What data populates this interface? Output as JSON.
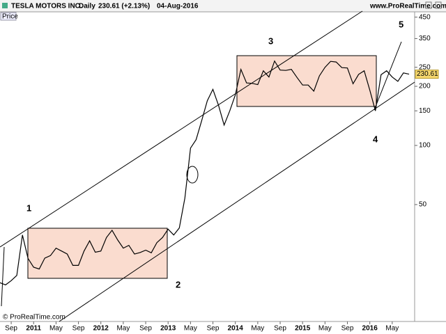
{
  "chart_data": {
    "type": "line",
    "title": "TESLA MOTORS INC.",
    "interval": "Daily",
    "change": "230.61 (+2.13%)",
    "date": "04-Aug-2016",
    "source": "www.ProRealTime.com",
    "copyright": "© ProRealTime.com",
    "annotations": [
      "1",
      "2",
      "3",
      "4",
      "5"
    ],
    "log_scale": true,
    "x": [
      "2010-07",
      "2010-08",
      "2010-09",
      "2010-10",
      "2010-11",
      "2010-12",
      "2011-01",
      "2011-02",
      "2011-03",
      "2011-04",
      "2011-05",
      "2011-06",
      "2011-07",
      "2011-08",
      "2011-09",
      "2011-10",
      "2011-11",
      "2011-12",
      "2012-01",
      "2012-02",
      "2012-03",
      "2012-04",
      "2012-05",
      "2012-06",
      "2012-07",
      "2012-08",
      "2012-09",
      "2012-10",
      "2012-11",
      "2012-12",
      "2013-01",
      "2013-02",
      "2013-03",
      "2013-04",
      "2013-05",
      "2013-06",
      "2013-07",
      "2013-08",
      "2013-09",
      "2013-10",
      "2013-11",
      "2013-12",
      "2014-01",
      "2014-02",
      "2014-03",
      "2014-04",
      "2014-05",
      "2014-06",
      "2014-07",
      "2014-08",
      "2014-09",
      "2014-10",
      "2014-11",
      "2014-12",
      "2015-01",
      "2015-02",
      "2015-03",
      "2015-04",
      "2015-05",
      "2015-06",
      "2015-07",
      "2015-08",
      "2015-09",
      "2015-10",
      "2015-11",
      "2015-12",
      "2016-01",
      "2016-02",
      "2016-03",
      "2016-04",
      "2016-05",
      "2016-06",
      "2016-07",
      "2016-08"
    ],
    "series": [
      {
        "name": "Price",
        "color": "#000000",
        "values": [
          20,
          19.5,
          20.5,
          21.8,
          35,
          26.6,
          24,
          23.5,
          26.7,
          27.5,
          30,
          29,
          28,
          24.5,
          24.5,
          29,
          32.7,
          28.6,
          29,
          34,
          37,
          33,
          30,
          31,
          28,
          28.5,
          29.3,
          28.4,
          32,
          34,
          37.5,
          35,
          38,
          54,
          97,
          107,
          134,
          169,
          193,
          160,
          127,
          150,
          181,
          244,
          208,
          207,
          204,
          240,
          223,
          269,
          242,
          241,
          244,
          222,
          203,
          203,
          189,
          226,
          250,
          268,
          266,
          249,
          248,
          206,
          230,
          240,
          191,
          150,
          229,
          240,
          223,
          212,
          234,
          230.61
        ]
      }
    ],
    "xlim": [
      "2010-07",
      "2016-09"
    ],
    "xticks": [
      {
        "value": "2010-09",
        "label": "Sep"
      },
      {
        "value": "2011-01",
        "label": "2011"
      },
      {
        "value": "2011-05",
        "label": "May"
      },
      {
        "value": "2011-09",
        "label": "Sep"
      },
      {
        "value": "2012-01",
        "label": "2012"
      },
      {
        "value": "2012-05",
        "label": "May"
      },
      {
        "value": "2012-09",
        "label": "Sep"
      },
      {
        "value": "2013-01",
        "label": "2013"
      },
      {
        "value": "2013-05",
        "label": "May"
      },
      {
        "value": "2013-09",
        "label": "Sep"
      },
      {
        "value": "2014-01",
        "label": "2014"
      },
      {
        "value": "2014-05",
        "label": "May"
      },
      {
        "value": "2014-09",
        "label": "Sep"
      },
      {
        "value": "2015-01",
        "label": "2015"
      },
      {
        "value": "2015-05",
        "label": "May"
      },
      {
        "value": "2015-09",
        "label": "Sep"
      },
      {
        "value": "2016-01",
        "label": "2016"
      },
      {
        "value": "2016-05",
        "label": "May"
      }
    ],
    "ylim": [
      12.7,
      475
    ],
    "yticks": [
      50,
      100,
      150,
      200,
      250,
      350,
      450
    ]
  }
}
